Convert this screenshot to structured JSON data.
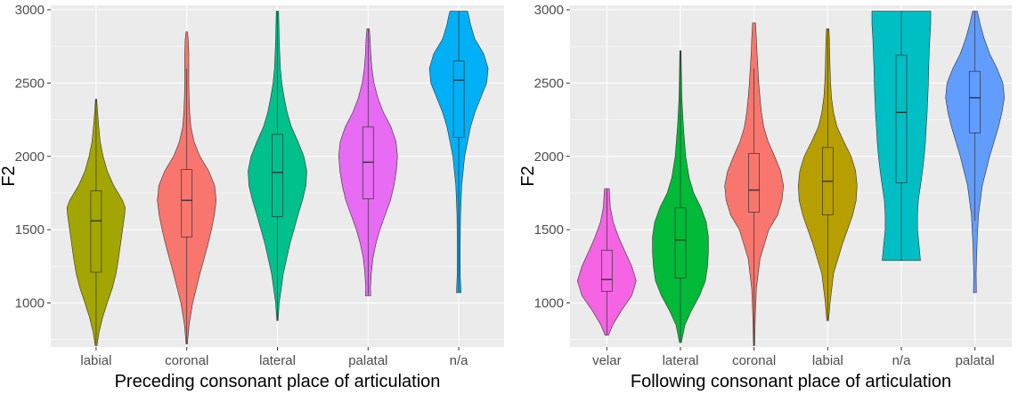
{
  "chart_data": [
    {
      "type": "violin",
      "xlabel": "Preceding consonant place of articulation",
      "ylabel": "F2",
      "ylim": [
        700,
        3030
      ],
      "yticks": [
        1000,
        1500,
        2000,
        2500,
        3000
      ],
      "grid": true,
      "legend": "none",
      "categories": [
        "labial",
        "coronal",
        "lateral",
        "palatal",
        "n/a"
      ],
      "groups": [
        {
          "label": "labial",
          "color": "#a3a500",
          "min": 710,
          "max": 2390,
          "q1": 1210,
          "median": 1560,
          "q3": 1765,
          "whisker_low": 710,
          "whisker_high": 2390,
          "density": [
            [
              710,
              0.03
            ],
            [
              800,
              0.1
            ],
            [
              900,
              0.22
            ],
            [
              1000,
              0.38
            ],
            [
              1100,
              0.55
            ],
            [
              1200,
              0.68
            ],
            [
              1300,
              0.76
            ],
            [
              1400,
              0.83
            ],
            [
              1500,
              0.9
            ],
            [
              1600,
              0.97
            ],
            [
              1650,
              0.99
            ],
            [
              1700,
              0.9
            ],
            [
              1800,
              0.6
            ],
            [
              1900,
              0.38
            ],
            [
              2000,
              0.24
            ],
            [
              2100,
              0.14
            ],
            [
              2200,
              0.09
            ],
            [
              2300,
              0.05
            ],
            [
              2390,
              0.02
            ]
          ]
        },
        {
          "label": "coronal",
          "color": "#f8766d",
          "min": 720,
          "max": 2850,
          "q1": 1450,
          "median": 1700,
          "q3": 1910,
          "whisker_low": 720,
          "whisker_high": 2600,
          "density": [
            [
              720,
              0.02
            ],
            [
              850,
              0.08
            ],
            [
              1000,
              0.2
            ],
            [
              1200,
              0.45
            ],
            [
              1400,
              0.72
            ],
            [
              1500,
              0.84
            ],
            [
              1600,
              0.94
            ],
            [
              1700,
              1.0
            ],
            [
              1800,
              0.95
            ],
            [
              1900,
              0.75
            ],
            [
              2000,
              0.45
            ],
            [
              2100,
              0.25
            ],
            [
              2200,
              0.14
            ],
            [
              2300,
              0.1
            ],
            [
              2400,
              0.08
            ],
            [
              2500,
              0.07
            ],
            [
              2600,
              0.07
            ],
            [
              2700,
              0.07
            ],
            [
              2800,
              0.05
            ],
            [
              2850,
              0.02
            ]
          ]
        },
        {
          "label": "lateral",
          "color": "#00c08b",
          "min": 880,
          "max": 2990,
          "q1": 1590,
          "median": 1890,
          "q3": 2150,
          "whisker_low": 880,
          "whisker_high": 2990,
          "density": [
            [
              880,
              0.02
            ],
            [
              1000,
              0.06
            ],
            [
              1200,
              0.2
            ],
            [
              1400,
              0.42
            ],
            [
              1600,
              0.7
            ],
            [
              1700,
              0.85
            ],
            [
              1800,
              0.97
            ],
            [
              1900,
              1.0
            ],
            [
              2000,
              0.9
            ],
            [
              2100,
              0.7
            ],
            [
              2200,
              0.48
            ],
            [
              2300,
              0.33
            ],
            [
              2400,
              0.23
            ],
            [
              2500,
              0.15
            ],
            [
              2600,
              0.1
            ],
            [
              2700,
              0.08
            ],
            [
              2800,
              0.06
            ],
            [
              2900,
              0.05
            ],
            [
              2990,
              0.04
            ]
          ]
        },
        {
          "label": "palatal",
          "color": "#e76bf3",
          "min": 1050,
          "max": 2870,
          "q1": 1710,
          "median": 1960,
          "q3": 2200,
          "whisker_low": 1050,
          "whisker_high": 2870,
          "density": [
            [
              1050,
              0.09
            ],
            [
              1100,
              0.08
            ],
            [
              1200,
              0.11
            ],
            [
              1300,
              0.16
            ],
            [
              1400,
              0.26
            ],
            [
              1500,
              0.4
            ],
            [
              1600,
              0.58
            ],
            [
              1700,
              0.76
            ],
            [
              1800,
              0.88
            ],
            [
              1900,
              0.96
            ],
            [
              2000,
              1.0
            ],
            [
              2100,
              0.95
            ],
            [
              2200,
              0.78
            ],
            [
              2300,
              0.52
            ],
            [
              2400,
              0.33
            ],
            [
              2500,
              0.2
            ],
            [
              2600,
              0.13
            ],
            [
              2700,
              0.09
            ],
            [
              2800,
              0.07
            ],
            [
              2870,
              0.04
            ]
          ]
        },
        {
          "label": "n/a",
          "color": "#00b0f6",
          "min": 1070,
          "max": 2990,
          "q1": 2130,
          "median": 2520,
          "q3": 2650,
          "whisker_low": 1070,
          "whisker_high": 2990,
          "density": [
            [
              1070,
              0.08
            ],
            [
              1200,
              0.05
            ],
            [
              1400,
              0.05
            ],
            [
              1600,
              0.06
            ],
            [
              1800,
              0.1
            ],
            [
              2000,
              0.2
            ],
            [
              2200,
              0.4
            ],
            [
              2300,
              0.55
            ],
            [
              2400,
              0.75
            ],
            [
              2500,
              0.95
            ],
            [
              2600,
              1.0
            ],
            [
              2700,
              0.85
            ],
            [
              2800,
              0.55
            ],
            [
              2900,
              0.4
            ],
            [
              2950,
              0.35
            ],
            [
              2990,
              0.3
            ]
          ]
        }
      ]
    },
    {
      "type": "violin",
      "xlabel": "Following consonant place of articulation",
      "ylabel": "F2",
      "ylim": [
        700,
        3030
      ],
      "yticks": [
        1000,
        1500,
        2000,
        2500,
        3000
      ],
      "grid": true,
      "legend": "none",
      "categories": [
        "velar",
        "lateral",
        "coronal",
        "labial",
        "n/a",
        "palatal"
      ],
      "groups": [
        {
          "label": "velar",
          "color": "#f564e3",
          "min": 780,
          "max": 1780,
          "q1": 1080,
          "median": 1160,
          "q3": 1360,
          "whisker_low": 780,
          "whisker_high": 1780,
          "density": [
            [
              780,
              0.06
            ],
            [
              850,
              0.2
            ],
            [
              950,
              0.5
            ],
            [
              1050,
              0.85
            ],
            [
              1150,
              1.0
            ],
            [
              1250,
              0.85
            ],
            [
              1350,
              0.62
            ],
            [
              1450,
              0.4
            ],
            [
              1550,
              0.22
            ],
            [
              1650,
              0.12
            ],
            [
              1780,
              0.08
            ]
          ]
        },
        {
          "label": "lateral",
          "color": "#00ba38",
          "min": 730,
          "max": 2720,
          "q1": 1170,
          "median": 1430,
          "q3": 1650,
          "whisker_low": 730,
          "whisker_high": 2720,
          "density": [
            [
              730,
              0.03
            ],
            [
              850,
              0.15
            ],
            [
              950,
              0.38
            ],
            [
              1050,
              0.65
            ],
            [
              1150,
              0.85
            ],
            [
              1250,
              0.92
            ],
            [
              1350,
              0.95
            ],
            [
              1450,
              0.95
            ],
            [
              1550,
              0.88
            ],
            [
              1650,
              0.7
            ],
            [
              1750,
              0.45
            ],
            [
              1850,
              0.3
            ],
            [
              2000,
              0.18
            ],
            [
              2200,
              0.1
            ],
            [
              2400,
              0.05
            ],
            [
              2600,
              0.03
            ],
            [
              2720,
              0.02
            ]
          ]
        },
        {
          "label": "coronal",
          "color": "#f8766d",
          "min": 710,
          "max": 2910,
          "q1": 1620,
          "median": 1770,
          "q3": 2020,
          "whisker_low": 710,
          "whisker_high": 2600,
          "density": [
            [
              710,
              0.02
            ],
            [
              900,
              0.04
            ],
            [
              1100,
              0.08
            ],
            [
              1300,
              0.2
            ],
            [
              1500,
              0.5
            ],
            [
              1600,
              0.8
            ],
            [
              1700,
              0.95
            ],
            [
              1800,
              1.0
            ],
            [
              1900,
              0.9
            ],
            [
              2000,
              0.7
            ],
            [
              2100,
              0.48
            ],
            [
              2200,
              0.33
            ],
            [
              2300,
              0.25
            ],
            [
              2400,
              0.2
            ],
            [
              2500,
              0.16
            ],
            [
              2600,
              0.13
            ],
            [
              2700,
              0.1
            ],
            [
              2800,
              0.08
            ],
            [
              2910,
              0.05
            ]
          ]
        },
        {
          "label": "labial",
          "color": "#b79f00",
          "min": 880,
          "max": 2870,
          "q1": 1600,
          "median": 1830,
          "q3": 2060,
          "whisker_low": 880,
          "whisker_high": 2870,
          "density": [
            [
              880,
              0.03
            ],
            [
              1000,
              0.08
            ],
            [
              1200,
              0.2
            ],
            [
              1400,
              0.5
            ],
            [
              1600,
              0.85
            ],
            [
              1700,
              0.97
            ],
            [
              1800,
              1.0
            ],
            [
              1900,
              0.95
            ],
            [
              2000,
              0.8
            ],
            [
              2100,
              0.55
            ],
            [
              2200,
              0.32
            ],
            [
              2300,
              0.2
            ],
            [
              2400,
              0.13
            ],
            [
              2500,
              0.1
            ],
            [
              2600,
              0.08
            ],
            [
              2700,
              0.07
            ],
            [
              2800,
              0.06
            ],
            [
              2870,
              0.04
            ]
          ]
        },
        {
          "label": "n/a",
          "color": "#00bfc4",
          "min": 1290,
          "max": 2990,
          "q1": 1820,
          "median": 2300,
          "q3": 2690,
          "whisker_low": 1290,
          "whisker_high": 2990,
          "density": [
            [
              1290,
              0.65
            ],
            [
              1400,
              0.6
            ],
            [
              1500,
              0.55
            ],
            [
              1600,
              0.55
            ],
            [
              1700,
              0.58
            ],
            [
              1800,
              0.65
            ],
            [
              1900,
              0.72
            ],
            [
              2000,
              0.78
            ],
            [
              2100,
              0.82
            ],
            [
              2200,
              0.85
            ],
            [
              2300,
              0.88
            ],
            [
              2400,
              0.9
            ],
            [
              2500,
              0.92
            ],
            [
              2600,
              0.93
            ],
            [
              2700,
              0.95
            ],
            [
              2800,
              0.97
            ],
            [
              2900,
              1.0
            ],
            [
              2990,
              1.0
            ]
          ]
        },
        {
          "label": "palatal",
          "color": "#619cff",
          "min": 1070,
          "max": 2990,
          "q1": 2160,
          "median": 2400,
          "q3": 2580,
          "whisker_low": 1560,
          "whisker_high": 2990,
          "density": [
            [
              1070,
              0.05
            ],
            [
              1200,
              0.04
            ],
            [
              1400,
              0.07
            ],
            [
              1600,
              0.12
            ],
            [
              1800,
              0.25
            ],
            [
              2000,
              0.5
            ],
            [
              2200,
              0.8
            ],
            [
              2300,
              0.92
            ],
            [
              2400,
              1.0
            ],
            [
              2500,
              0.95
            ],
            [
              2600,
              0.75
            ],
            [
              2700,
              0.5
            ],
            [
              2800,
              0.32
            ],
            [
              2900,
              0.18
            ],
            [
              2990,
              0.08
            ]
          ]
        }
      ]
    }
  ]
}
